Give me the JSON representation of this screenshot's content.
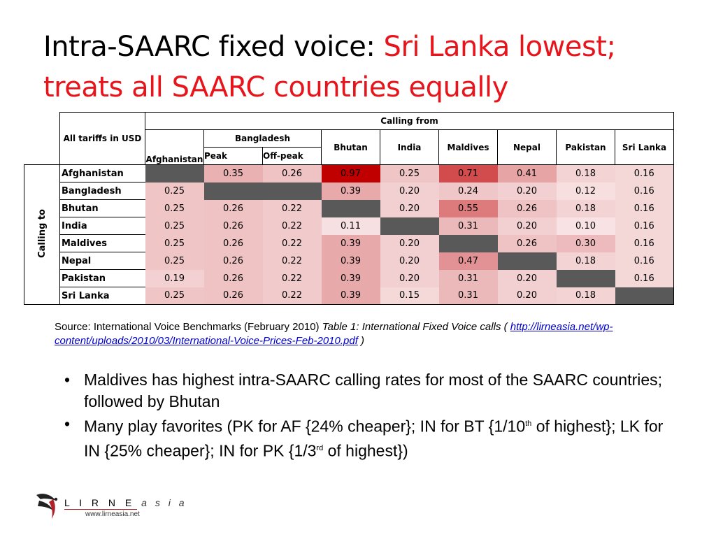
{
  "title": {
    "part1": "Intra-SAARC fixed voice: ",
    "part2": "Sri Lanka lowest; treats all SAARC countries equally"
  },
  "table": {
    "corner_label": "All tariffs in USD",
    "calling_from": "Calling from",
    "calling_to": "Calling to",
    "columns": {
      "afghanistan": "Afghanistan",
      "bangladesh": "Bangladesh",
      "peak": "Peak",
      "offpeak": "Off-peak",
      "bhutan": "Bhutan",
      "india": "India",
      "maldives": "Maldives",
      "nepal": "Nepal",
      "pakistan": "Pakistan",
      "srilanka": "Sri Lanka"
    },
    "rows": [
      {
        "label": "Afghanistan",
        "values": [
          "",
          "0.35",
          "0.26",
          "0.97",
          "0.25",
          "0.71",
          "0.41",
          "0.18",
          "0.16"
        ]
      },
      {
        "label": "Bangladesh",
        "values": [
          "0.25",
          "",
          "",
          "0.39",
          "0.20",
          "0.24",
          "0.20",
          "0.12",
          "0.16"
        ]
      },
      {
        "label": "Bhutan",
        "values": [
          "0.25",
          "0.26",
          "0.22",
          "",
          "0.20",
          "0.55",
          "0.26",
          "0.18",
          "0.16"
        ]
      },
      {
        "label": "India",
        "values": [
          "0.25",
          "0.26",
          "0.22",
          "0.11",
          "",
          "0.31",
          "0.20",
          "0.10",
          "0.16"
        ]
      },
      {
        "label": "Maldives",
        "values": [
          "0.25",
          "0.26",
          "0.22",
          "0.39",
          "0.20",
          "",
          "0.26",
          "0.30",
          "0.16"
        ]
      },
      {
        "label": "Nepal",
        "values": [
          "0.25",
          "0.26",
          "0.22",
          "0.39",
          "0.20",
          "0.47",
          "",
          "0.18",
          "0.16"
        ]
      },
      {
        "label": "Pakistan",
        "values": [
          "0.19",
          "0.26",
          "0.22",
          "0.39",
          "0.20",
          "0.31",
          "0.20",
          "",
          "0.16"
        ]
      },
      {
        "label": "Sri Lanka",
        "values": [
          "0.25",
          "0.26",
          "0.22",
          "0.39",
          "0.15",
          "0.31",
          "0.20",
          "0.18",
          ""
        ]
      }
    ]
  },
  "source": {
    "prefix": "Source: International Voice Benchmarks (February 2010) ",
    "italic": "Table 1: International Fixed Voice calls (",
    "url": "http://lirneasia.net/wp-content/uploads/2010/03/International-Voice-Prices-Feb-2010.pdf",
    "suffix": " )"
  },
  "bullets": {
    "b1": "Maldives has highest intra-SAARC calling rates for most of the SAARC countries; followed by Bhutan",
    "b2_a": "Many play favorites (PK for AF {24% cheaper}; IN for BT {1/10",
    "b2_sup1": "th",
    "b2_b": " of highest}; LK for IN {25% cheaper}; IN for PK {1/3",
    "b2_sup2": "rd",
    "b2_c": " of highest})"
  },
  "logo": {
    "name": "L I R N E",
    "asia": "a s i a",
    "url": "www.lirneasia.net"
  },
  "colors": {
    "title_highlight": "#e8141b",
    "blank_cell": "#595959",
    "heat_max": "#c00000"
  }
}
